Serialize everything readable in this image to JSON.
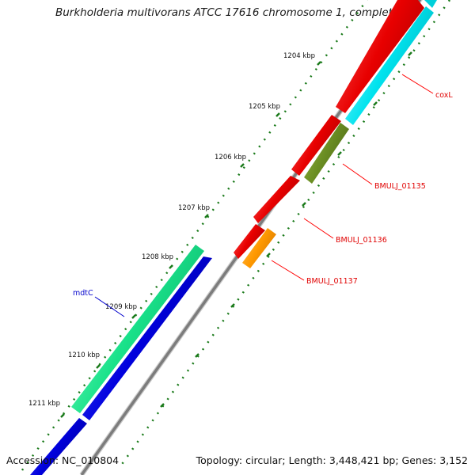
{
  "title": "Burkholderia multivorans ATCC 17616 chromosome 1, complete g...",
  "footer": {
    "accession": "Accession: NC_010804",
    "summary": "Topology: circular; Length: 3,448,421 bp; Genes: 3,152"
  },
  "ticks": [
    "1204 kbp",
    "1205 kbp",
    "1206 kbp",
    "1207 kbp",
    "1208 kbp",
    "1209 kbp",
    "1210 kbp",
    "1211 kbp"
  ],
  "genes": [
    {
      "name": "coxL",
      "color": "#ff0000"
    },
    {
      "name": "BMULJ_01135",
      "color": "#ff0000"
    },
    {
      "name": "BMULJ_01136",
      "color": "#ff0000"
    },
    {
      "name": "BMULJ_01137",
      "color": "#ff0000"
    },
    {
      "name": "mdtC",
      "color": "#0000cc"
    }
  ],
  "colors": {
    "backbone": "#8a8a8a",
    "tick": "#1a7a1a",
    "red_feature": "#e60000",
    "cyan_feature": "#00e5ee",
    "olive_feature": "#6b8e23",
    "orange_feature": "#ff9900",
    "blue_feature": "#0000dd",
    "mint_feature": "#1be68e"
  }
}
